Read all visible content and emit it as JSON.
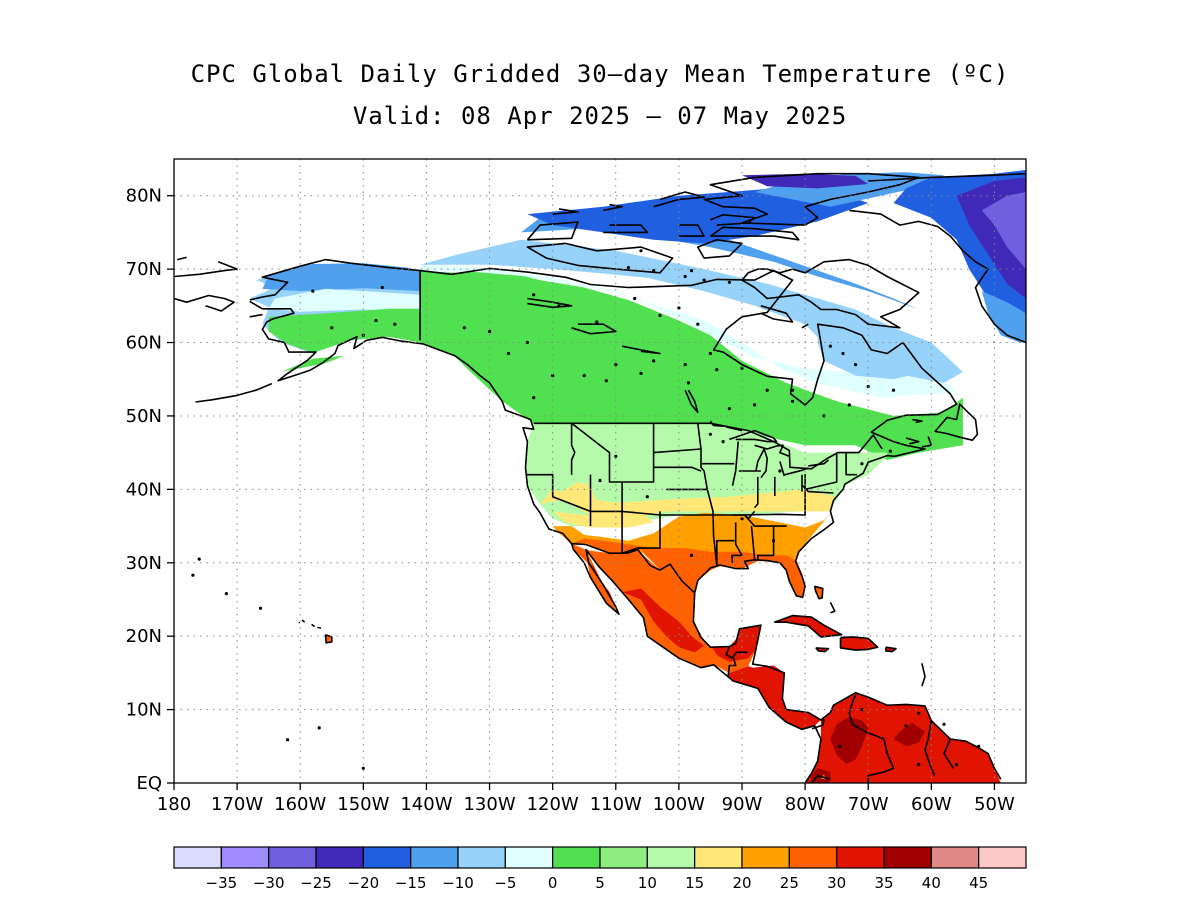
{
  "title": "CPC Global Daily Gridded 30–day Mean Temperature (ºC)",
  "subtitle": "Valid: 08 Apr 2025 – 07 May 2025",
  "map": {
    "projection": "equirectangular",
    "lon_range": [
      -180,
      -45
    ],
    "lat_range": [
      0,
      85
    ],
    "lat_labels": [
      "80N",
      "70N",
      "60N",
      "50N",
      "40N",
      "30N",
      "20N",
      "10N",
      "EQ"
    ],
    "lat_values": [
      80,
      70,
      60,
      50,
      40,
      30,
      20,
      10,
      0
    ],
    "lon_labels": [
      "180",
      "170W",
      "160W",
      "150W",
      "140W",
      "130W",
      "120W",
      "110W",
      "100W",
      "90W",
      "80W",
      "70W",
      "60W",
      "50W"
    ],
    "lon_values": [
      -180,
      -170,
      -160,
      -150,
      -140,
      -130,
      -120,
      -110,
      -100,
      -90,
      -80,
      -70,
      -60,
      -50
    ],
    "grid": "dotted"
  },
  "colorbar": {
    "colors": [
      "#dcdcff",
      "#a08cff",
      "#7060e0",
      "#4028b8",
      "#2060e0",
      "#50a0f0",
      "#96d2fa",
      "#e0ffff",
      "#50e050",
      "#90ee80",
      "#b4faaa",
      "#ffe878",
      "#ffa000",
      "#ff6000",
      "#e01400",
      "#a00000",
      "#e08888",
      "#ffc8c8"
    ],
    "labels": [
      "−35",
      "−30",
      "−25",
      "−20",
      "−15",
      "−10",
      "−5",
      "0",
      "5",
      "10",
      "15",
      "20",
      "25",
      "30",
      "35",
      "40",
      "45"
    ]
  }
}
